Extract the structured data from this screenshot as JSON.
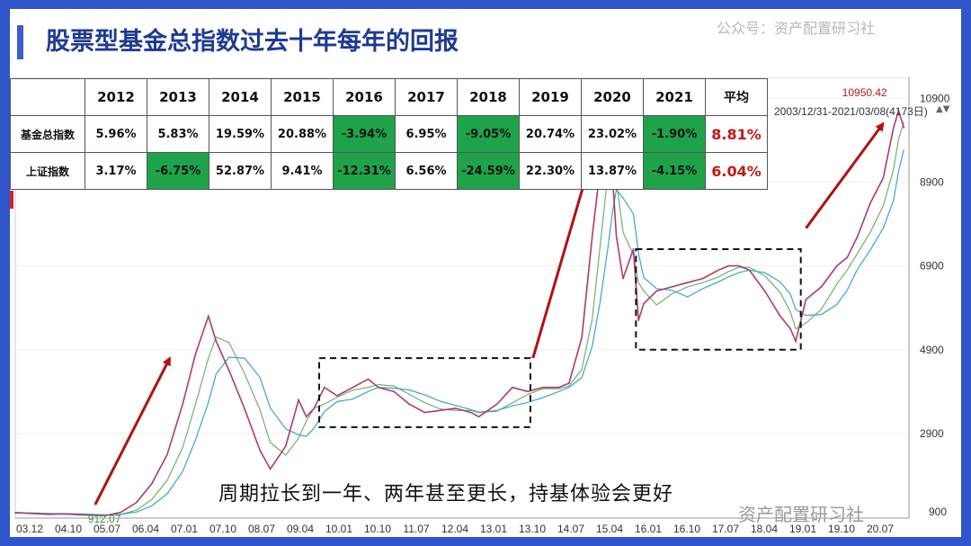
{
  "page": {
    "title": "股票型基金总指数过去十年每年的回报",
    "watermark_top": "公众号：资产配置研习社",
    "watermark_bottom": "资产配置研习社",
    "caption": "周期拉长到一年、两年甚至更长，持基体验会更好",
    "range_label": "2003/12/31-2021/03/08(4173日)",
    "range_scroll_icon": "▲▼"
  },
  "table": {
    "avg_header": "平均",
    "years": [
      "2012",
      "2013",
      "2014",
      "2015",
      "2016",
      "2017",
      "2018",
      "2019",
      "2020",
      "2021"
    ],
    "rows": [
      {
        "name": "基金总指数",
        "values": [
          "5.96%",
          "5.83%",
          "19.59%",
          "20.88%",
          "-3.94%",
          "6.95%",
          "-9.05%",
          "20.74%",
          "23.02%",
          "-1.90%"
        ],
        "avg": "8.81%"
      },
      {
        "name": "上证指数",
        "values": [
          "3.17%",
          "-6.75%",
          "52.87%",
          "9.41%",
          "-12.31%",
          "6.56%",
          "-24.59%",
          "22.30%",
          "13.87%",
          "-4.15%"
        ],
        "avg": "6.04%"
      }
    ]
  },
  "colors": {
    "frame": "#2f55c8",
    "title": "#1f3a93",
    "negative_cell": "#1fa34a",
    "average_text": "#c01818",
    "price_line": "#b03a6a",
    "ma_short": "#6fb26a",
    "ma_long": "#3aa6c8",
    "arrow": "#b01212"
  },
  "chart_data": {
    "type": "line",
    "title": "股票型基金总指数",
    "x_ticks": [
      "03.12",
      "04.10",
      "05.07",
      "06.04",
      "07.01",
      "07.10",
      "08.07",
      "09.04",
      "10.01",
      "10.10",
      "11.07",
      "12.04",
      "13.01",
      "13.10",
      "14.07",
      "15.04",
      "16.01",
      "16.10",
      "17.07",
      "18.04",
      "19.01",
      "19.10",
      "20.07"
    ],
    "y_ticks": [
      "2900",
      "4900",
      "6900",
      "8900",
      "10900"
    ],
    "y_tick_values": [
      2900,
      4900,
      6900,
      8900,
      10900
    ],
    "bottom_tick_label": "900",
    "ylim": [
      880,
      11400
    ],
    "xlim": [
      2003.95,
      2021.3
    ],
    "series": [
      {
        "name": "基金总指数",
        "x": [
          2003.95,
          2004.3,
          2004.6,
          2004.9,
          2005.2,
          2005.45,
          2005.7,
          2006.0,
          2006.3,
          2006.6,
          2006.9,
          2007.2,
          2007.45,
          2007.7,
          2007.85,
          2008.1,
          2008.4,
          2008.7,
          2008.9,
          2009.2,
          2009.45,
          2009.6,
          2009.75,
          2009.95,
          2010.2,
          2010.5,
          2010.8,
          2011.0,
          2011.3,
          2011.6,
          2011.9,
          2012.2,
          2012.5,
          2012.8,
          2012.95,
          2013.3,
          2013.6,
          2013.9,
          2014.2,
          2014.5,
          2014.7,
          2014.95,
          2015.15,
          2015.3,
          2015.45,
          2015.55,
          2015.62,
          2015.75,
          2015.95,
          2016.05,
          2016.15,
          2016.4,
          2016.7,
          2017.0,
          2017.3,
          2017.6,
          2017.8,
          2018.0,
          2018.2,
          2018.5,
          2018.8,
          2019.0,
          2019.1,
          2019.3,
          2019.6,
          2019.9,
          2020.1,
          2020.3,
          2020.55,
          2020.8,
          2021.0,
          2021.1,
          2021.2
        ],
        "values": [
          1010,
          990,
          970,
          980,
          960,
          950,
          940,
          1020,
          1250,
          1700,
          2400,
          3600,
          4800,
          5700,
          5100,
          4400,
          3500,
          2500,
          2050,
          2600,
          3700,
          3300,
          3500,
          4000,
          3800,
          4000,
          4200,
          4000,
          3900,
          3600,
          3400,
          3450,
          3500,
          3400,
          3300,
          3600,
          4000,
          3900,
          4000,
          4000,
          4100,
          5200,
          7600,
          9200,
          10300,
          8900,
          7600,
          6600,
          7300,
          5600,
          6000,
          6300,
          6400,
          6500,
          6600,
          6800,
          6900,
          6900,
          6800,
          6300,
          5700,
          5400,
          5100,
          6100,
          6400,
          6900,
          7100,
          7600,
          8400,
          9000,
          10200,
          10600,
          10200
        ]
      }
    ],
    "annotations": [
      {
        "type": "label",
        "text": "912.07",
        "x": 2005.5,
        "y": 940
      },
      {
        "type": "label",
        "text": "10950.42",
        "x": 2021.05,
        "y": 10950
      },
      {
        "type": "box",
        "x0": 2009.85,
        "x1": 2013.95,
        "y0": 3050,
        "y1": 4700
      },
      {
        "type": "box",
        "x0": 2016.0,
        "x1": 2019.2,
        "y0": 4900,
        "y1": 7300
      },
      {
        "type": "arrow",
        "x0": 2005.5,
        "y0": 1200,
        "x1": 2006.95,
        "y1": 4700
      },
      {
        "type": "arrow",
        "x0": 2014.0,
        "y0": 4700,
        "x1": 2015.0,
        "y1": 8900
      },
      {
        "type": "arrow",
        "x0": 2019.3,
        "y0": 7800,
        "x1": 2020.8,
        "y1": 10300
      }
    ]
  }
}
